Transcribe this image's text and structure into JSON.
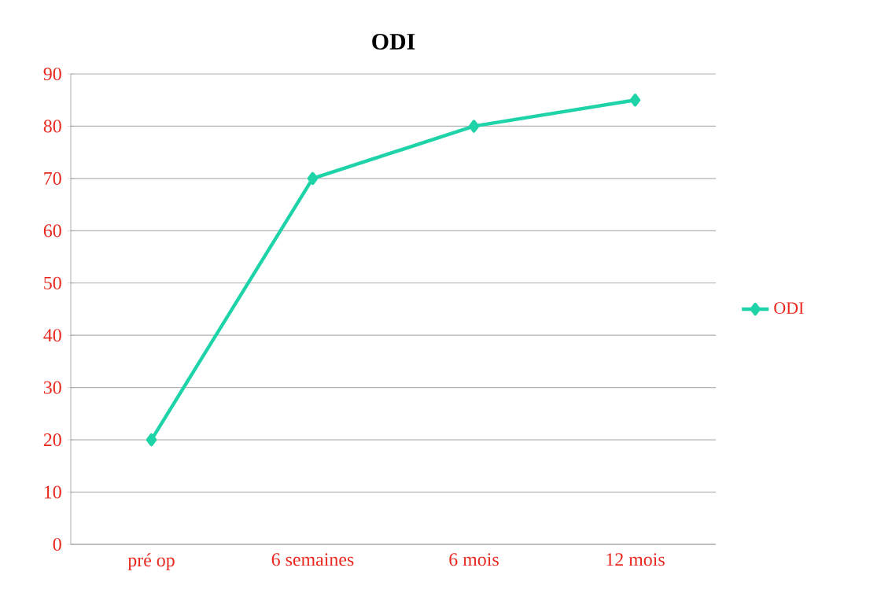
{
  "chart_data": {
    "type": "line",
    "title": "ODI",
    "categories": [
      "pré op",
      "6 semaines",
      "6 mois",
      "12 mois"
    ],
    "series": [
      {
        "name": "ODI",
        "color": "#1fd3a8",
        "values": [
          20,
          70,
          80,
          85
        ]
      }
    ],
    "ylim": [
      0,
      90
    ],
    "yticks": [
      0,
      10,
      20,
      30,
      40,
      50,
      60,
      70,
      80,
      90
    ],
    "grid": "y",
    "legend": "right",
    "marker": "diamond",
    "line_style": "solid"
  }
}
